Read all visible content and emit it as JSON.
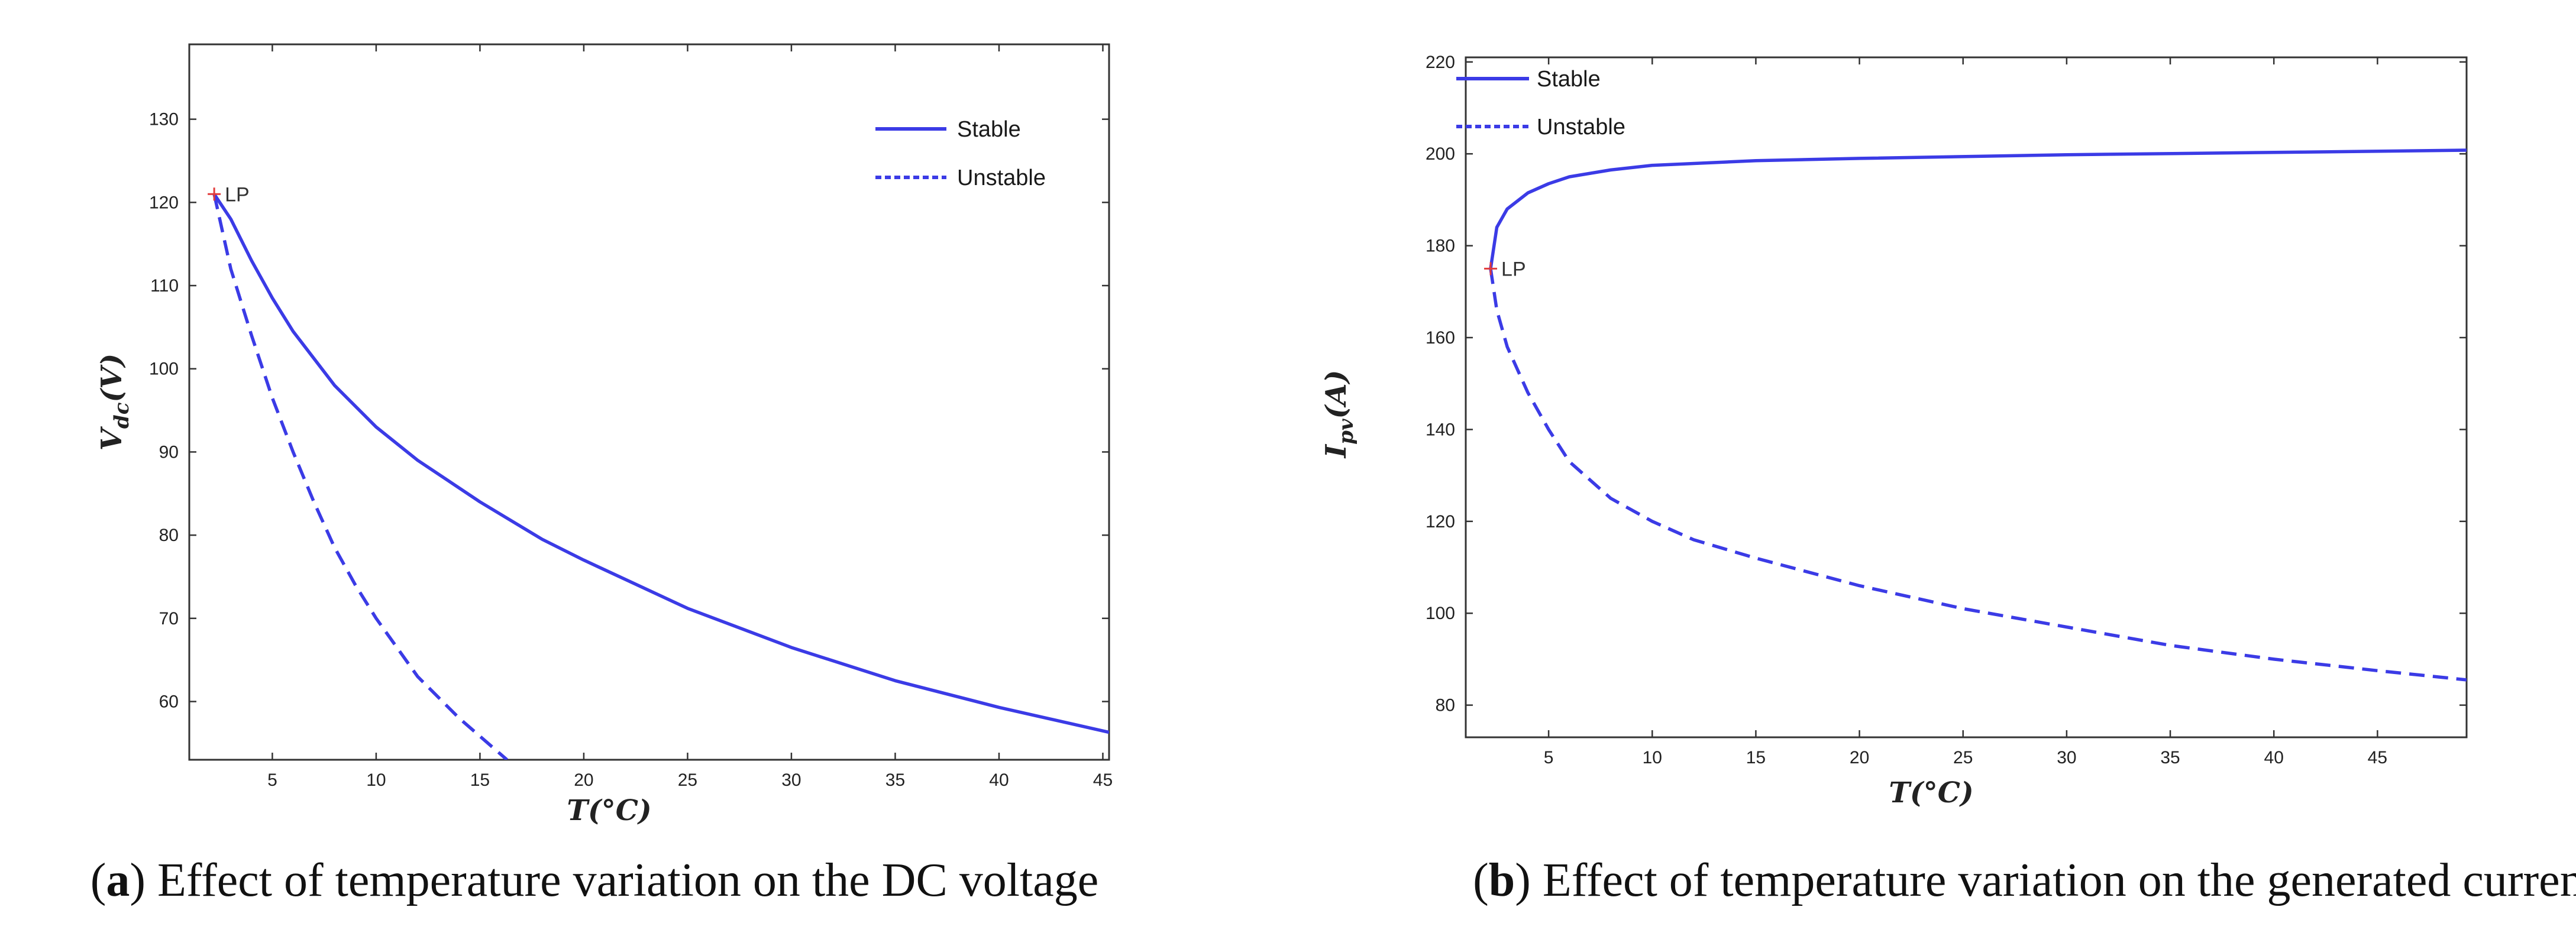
{
  "chart_data": [
    {
      "type": "line",
      "id": "a",
      "caption_letter": "a",
      "caption_text": "Effect of temperature variation on the DC voltage",
      "xlabel": "T(°C)",
      "ylabel": "V_dc(V)",
      "ylabel_main": "V",
      "ylabel_sub": "dc",
      "ylabel_tail": "(V)",
      "xlim": [
        1,
        45.3
      ],
      "ylim": [
        53,
        139
      ],
      "xticks": [
        5,
        10,
        15,
        20,
        25,
        30,
        35,
        40,
        45
      ],
      "yticks": [
        60,
        70,
        80,
        90,
        100,
        110,
        120,
        130
      ],
      "legend": {
        "stable_label": "Stable",
        "unstable_label": "Unstable",
        "position": "top-right"
      },
      "limit_point": {
        "label": "LP",
        "x": 2.2,
        "y": 121
      },
      "series": [
        {
          "name": "Stable",
          "style": "solid",
          "color": "#3b3be6",
          "points": [
            [
              2.2,
              121
            ],
            [
              3,
              118
            ],
            [
              4,
              113
            ],
            [
              5,
              108.5
            ],
            [
              6,
              104.5
            ],
            [
              8,
              98
            ],
            [
              10,
              93
            ],
            [
              12,
              89
            ],
            [
              15,
              84
            ],
            [
              18,
              79.5
            ],
            [
              20,
              77
            ],
            [
              25,
              71.2
            ],
            [
              30,
              66.5
            ],
            [
              35,
              62.5
            ],
            [
              40,
              59.3
            ],
            [
              45.3,
              56.3
            ]
          ]
        },
        {
          "name": "Unstable",
          "style": "dashed",
          "color": "#3b3be6",
          "points": [
            [
              2.2,
              121
            ],
            [
              3,
              112
            ],
            [
              4,
              104
            ],
            [
              5,
              96.5
            ],
            [
              6,
              90
            ],
            [
              7,
              84
            ],
            [
              8,
              78.5
            ],
            [
              9,
              74
            ],
            [
              10,
              70
            ],
            [
              12,
              63
            ],
            [
              14,
              58
            ],
            [
              16.3,
              53
            ]
          ]
        }
      ]
    },
    {
      "type": "line",
      "id": "b",
      "caption_letter": "b",
      "caption_text": "Effect of temperature variation on the generated current",
      "xlabel": "T(°C)",
      "ylabel": "I_pv(A)",
      "ylabel_main": "I",
      "ylabel_sub": "pv",
      "ylabel_tail": "(A)",
      "xlim": [
        1,
        49.3
      ],
      "ylim": [
        73,
        221
      ],
      "xticks": [
        5,
        10,
        15,
        20,
        25,
        30,
        35,
        40,
        45
      ],
      "yticks": [
        80,
        100,
        120,
        140,
        160,
        180,
        200,
        220
      ],
      "legend": {
        "stable_label": "Stable",
        "unstable_label": "Unstable",
        "position": "top-left"
      },
      "limit_point": {
        "label": "LP",
        "x": 2.2,
        "y": 175
      },
      "series": [
        {
          "name": "Stable",
          "style": "solid",
          "color": "#3b3be6",
          "points": [
            [
              2.2,
              175
            ],
            [
              2.5,
              184
            ],
            [
              3,
              188
            ],
            [
              4,
              191.5
            ],
            [
              5,
              193.5
            ],
            [
              6,
              195
            ],
            [
              8,
              196.5
            ],
            [
              10,
              197.5
            ],
            [
              15,
              198.5
            ],
            [
              20,
              199
            ],
            [
              30,
              199.8
            ],
            [
              40,
              200.3
            ],
            [
              49.3,
              200.8
            ]
          ]
        },
        {
          "name": "Unstable",
          "style": "dashed",
          "color": "#3b3be6",
          "points": [
            [
              2.2,
              175
            ],
            [
              2.5,
              166
            ],
            [
              3,
              158
            ],
            [
              4,
              148
            ],
            [
              5,
              140
            ],
            [
              6,
              133
            ],
            [
              8,
              125
            ],
            [
              10,
              120
            ],
            [
              12,
              116
            ],
            [
              15,
              112
            ],
            [
              20,
              106
            ],
            [
              25,
              101
            ],
            [
              30,
              97
            ],
            [
              35,
              93
            ],
            [
              40,
              90
            ],
            [
              45,
              87.5
            ],
            [
              49.3,
              85.5
            ]
          ]
        }
      ]
    }
  ]
}
